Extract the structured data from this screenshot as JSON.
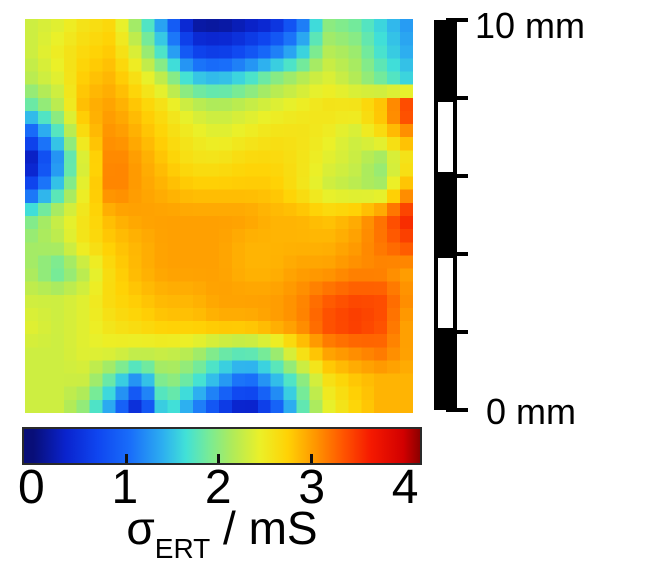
{
  "scalebar": {
    "top_label": "10 mm",
    "bottom_label": "0 mm",
    "segments": [
      "black",
      "white",
      "black",
      "white",
      "black"
    ],
    "tick_count": 6,
    "length_mm": 10
  },
  "colorbar": {
    "tick_labels": [
      "0",
      "1",
      "2",
      "3",
      "4"
    ],
    "tick_values": [
      0,
      1,
      2,
      3,
      4
    ],
    "tick_marks": [
      1,
      2,
      3
    ],
    "vmin": -0.1,
    "vmax": 4.18,
    "border_color": "#2a2a2a",
    "label": {
      "symbol": "σ",
      "subscript": "ERT",
      "suffix": " / mS"
    }
  },
  "chart_data": {
    "type": "heatmap",
    "title": "",
    "colorbar_label": "σ_ERT / mS",
    "units": "mS",
    "x_range_mm": [
      0,
      10
    ],
    "y_range_mm": [
      0,
      10
    ],
    "value_range": [
      -0.1,
      4.18
    ],
    "colormap": "jet",
    "colormap_stops": [
      [
        0.0,
        [
          8,
          14,
          120
        ]
      ],
      [
        0.35,
        [
          10,
          35,
          205
        ]
      ],
      [
        0.7,
        [
          15,
          70,
          240
        ]
      ],
      [
        1.05,
        [
          25,
          110,
          250
        ]
      ],
      [
        1.4,
        [
          45,
          175,
          240
        ]
      ],
      [
        1.65,
        [
          65,
          225,
          215
        ]
      ],
      [
        1.9,
        [
          120,
          235,
          150
        ]
      ],
      [
        2.15,
        [
          175,
          235,
          90
        ]
      ],
      [
        2.45,
        [
          235,
          240,
          40
        ]
      ],
      [
        2.75,
        [
          255,
          210,
          5
        ]
      ],
      [
        3.05,
        [
          255,
          150,
          0
        ]
      ],
      [
        3.35,
        [
          255,
          85,
          0
        ]
      ],
      [
        3.65,
        [
          245,
          25,
          0
        ]
      ],
      [
        4.0,
        [
          210,
          0,
          0
        ]
      ],
      [
        4.25,
        [
          140,
          0,
          0
        ]
      ]
    ],
    "grid_rows": 15,
    "grid_cols": 15,
    "grid": [
      [
        2.3,
        2.4,
        2.6,
        2.7,
        2.0,
        1.2,
        0.2,
        0.15,
        0.3,
        0.45,
        1.0,
        2.0,
        1.9,
        1.6,
        1.3
      ],
      [
        2.3,
        2.5,
        2.7,
        2.8,
        2.3,
        1.6,
        0.7,
        0.6,
        0.8,
        1.1,
        1.5,
        2.2,
        2.1,
        1.7,
        1.4
      ],
      [
        2.2,
        2.4,
        2.8,
        2.9,
        2.6,
        2.2,
        1.6,
        1.5,
        1.7,
        2.0,
        2.2,
        2.4,
        2.2,
        1.9,
        1.6
      ],
      [
        1.8,
        2.2,
        2.9,
        3.0,
        2.8,
        2.6,
        2.3,
        2.2,
        2.3,
        2.4,
        2.5,
        2.6,
        2.6,
        2.9,
        3.6
      ],
      [
        0.9,
        1.7,
        2.7,
        3.1,
        2.9,
        2.7,
        2.5,
        2.4,
        2.5,
        2.6,
        2.6,
        2.5,
        2.3,
        2.6,
        3.0
      ],
      [
        0.2,
        1.2,
        2.4,
        3.2,
        3.0,
        2.8,
        2.6,
        2.6,
        2.7,
        2.7,
        2.6,
        2.4,
        2.3,
        2.0,
        2.5
      ],
      [
        0.8,
        1.6,
        2.5,
        3.2,
        3.0,
        2.9,
        2.8,
        2.8,
        2.8,
        2.8,
        2.6,
        2.3,
        2.2,
        2.1,
        2.9
      ],
      [
        1.9,
        2.3,
        2.6,
        2.9,
        3.0,
        3.0,
        3.0,
        3.0,
        3.0,
        2.9,
        2.9,
        2.8,
        2.9,
        3.2,
        3.6
      ],
      [
        2.1,
        2.2,
        2.6,
        2.8,
        2.9,
        3.0,
        3.0,
        3.0,
        2.9,
        2.9,
        2.9,
        2.9,
        3.0,
        3.2,
        3.4
      ],
      [
        2.1,
        1.8,
        2.2,
        2.7,
        2.9,
        3.0,
        3.0,
        3.0,
        2.9,
        2.9,
        3.0,
        3.0,
        3.1,
        3.1,
        3.0
      ],
      [
        2.3,
        2.3,
        2.4,
        2.7,
        2.8,
        2.9,
        2.9,
        3.0,
        3.0,
        3.0,
        3.1,
        3.3,
        3.4,
        3.4,
        3.1
      ],
      [
        2.4,
        2.3,
        2.4,
        2.6,
        2.7,
        2.8,
        2.8,
        2.9,
        2.9,
        3.0,
        3.1,
        3.4,
        3.5,
        3.4,
        3.0
      ],
      [
        2.3,
        2.3,
        2.4,
        2.4,
        2.3,
        2.3,
        2.2,
        1.9,
        1.8,
        2.0,
        2.6,
        3.0,
        3.1,
        3.2,
        3.0
      ],
      [
        2.3,
        2.3,
        2.3,
        1.8,
        1.2,
        2.1,
        1.8,
        1.4,
        1.0,
        1.4,
        1.9,
        2.6,
        2.8,
        2.9,
        2.9
      ],
      [
        2.3,
        2.3,
        2.0,
        1.3,
        0.35,
        1.8,
        1.3,
        0.7,
        0.25,
        0.8,
        1.7,
        2.4,
        2.7,
        2.9,
        2.9
      ]
    ]
  }
}
